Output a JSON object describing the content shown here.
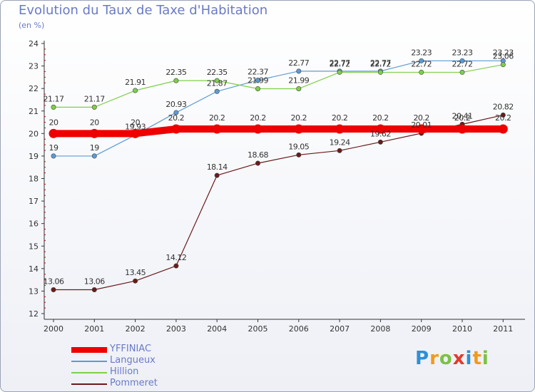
{
  "chart_data": {
    "type": "line",
    "title": "Evolution du Taux de Taxe d'Habitation",
    "ylabel": "(en %)",
    "ylim": [
      12,
      24
    ],
    "yticks": [
      12,
      13,
      14,
      15,
      16,
      17,
      18,
      19,
      20,
      21,
      22,
      23,
      24
    ],
    "x": [
      "2000",
      "2001",
      "2002",
      "2003",
      "2004",
      "2005",
      "2006",
      "2007",
      "2008",
      "2009",
      "2010",
      "2011"
    ],
    "series": [
      {
        "name": "YFFINIAC",
        "color": "#ee0000",
        "values": [
          20,
          20,
          20,
          20.2,
          20.2,
          20.2,
          20.2,
          20.2,
          20.2,
          20.2,
          20.2,
          20.2
        ]
      },
      {
        "name": "Langueux",
        "color": "#5b9bd5",
        "values": [
          19,
          19,
          19.93,
          20.93,
          21.87,
          22.37,
          22.77,
          22.77,
          22.77,
          23.23,
          23.23,
          23.23
        ]
      },
      {
        "name": "Hillion",
        "color": "#7ed046",
        "values": [
          21.17,
          21.17,
          21.91,
          22.35,
          22.35,
          21.99,
          21.99,
          22.72,
          22.72,
          22.72,
          22.72,
          23.06
        ]
      },
      {
        "name": "Pommeret",
        "color": "#6b1a1a",
        "values": [
          13.06,
          13.06,
          13.45,
          14.12,
          18.14,
          18.68,
          19.05,
          19.24,
          19.62,
          20.01,
          20.41,
          20.82
        ]
      }
    ],
    "grid": false,
    "legend_position": "bottom-left"
  },
  "logo": {
    "text": "Proxiti",
    "letters": [
      "P",
      "r",
      "o",
      "x",
      "i",
      "t",
      "i"
    ]
  }
}
